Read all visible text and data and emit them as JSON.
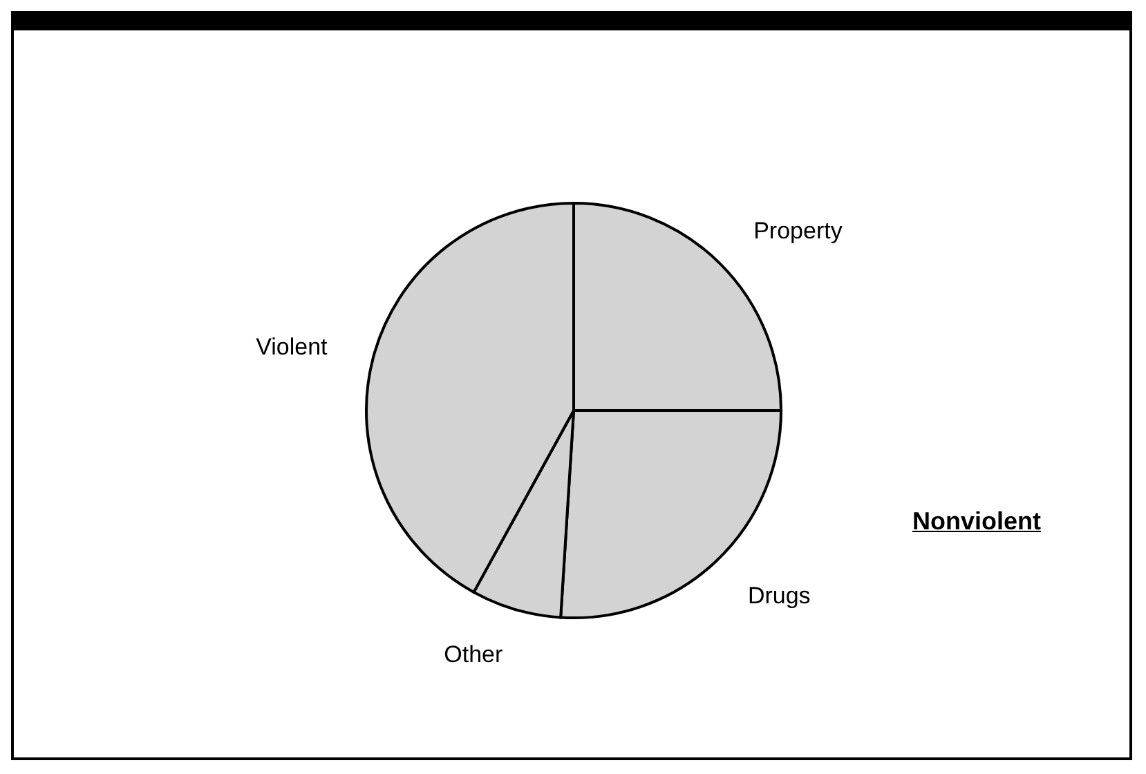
{
  "chart_data": {
    "type": "pie",
    "categories": [
      "Property",
      "Drugs",
      "Other",
      "Violent"
    ],
    "values": [
      25,
      26,
      7,
      42
    ],
    "colors": [
      "#d3d3d3",
      "#d3d3d3",
      "#d3d3d3",
      "#d3d3d3"
    ],
    "annotations": [
      "Nonviolent"
    ]
  }
}
